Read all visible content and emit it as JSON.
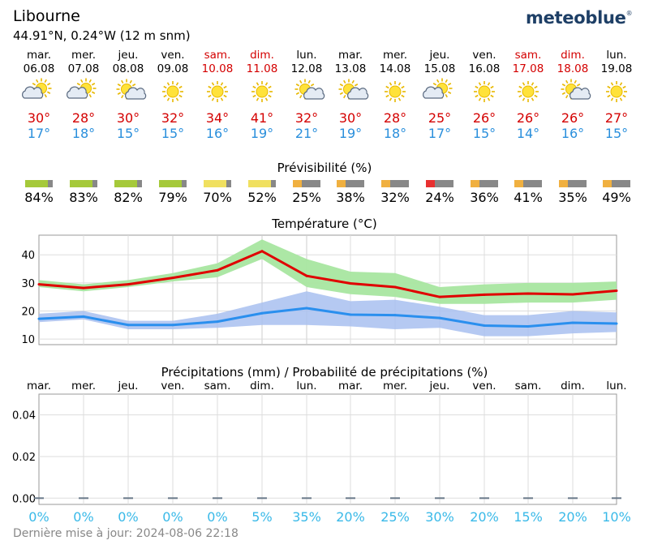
{
  "location": {
    "name": "Libourne",
    "coords": "44.91°N, 0.24°W (12 m snm)"
  },
  "brand": {
    "name": "meteoblue",
    "mark": "®"
  },
  "days": [
    {
      "name": "mar.",
      "date": "06.08",
      "weekend": false,
      "icon": "sun-cloud-left-icon",
      "tmax": "30°",
      "tmin": "17°",
      "predictability": "84%",
      "pred_value": 84,
      "pred_color": "#a5c93a",
      "precip_prob": "0%"
    },
    {
      "name": "mer.",
      "date": "07.08",
      "weekend": false,
      "icon": "sun-cloud-left-icon",
      "tmax": "28°",
      "tmin": "18°",
      "predictability": "83%",
      "pred_value": 83,
      "pred_color": "#a5c93a",
      "precip_prob": "0%"
    },
    {
      "name": "jeu.",
      "date": "08.08",
      "weekend": false,
      "icon": "sun-cloud-right-icon",
      "tmax": "30°",
      "tmin": "15°",
      "predictability": "82%",
      "pred_value": 82,
      "pred_color": "#a5c93a",
      "precip_prob": "0%"
    },
    {
      "name": "ven.",
      "date": "09.08",
      "weekend": false,
      "icon": "sun-icon",
      "tmax": "32°",
      "tmin": "15°",
      "predictability": "79%",
      "pred_value": 79,
      "pred_color": "#a5c93a",
      "precip_prob": "0%"
    },
    {
      "name": "sam.",
      "date": "10.08",
      "weekend": true,
      "icon": "sun-icon",
      "tmax": "34°",
      "tmin": "16°",
      "predictability": "70%",
      "pred_value": 70,
      "pred_color": "#f0e060",
      "precip_prob": "0%"
    },
    {
      "name": "dim.",
      "date": "11.08",
      "weekend": true,
      "icon": "sun-icon",
      "tmax": "41°",
      "tmin": "19°",
      "predictability": "52%",
      "pred_value": 52,
      "pred_color": "#f0e060",
      "precip_prob": "5%"
    },
    {
      "name": "lun.",
      "date": "12.08",
      "weekend": false,
      "icon": "sun-cloud-right-icon",
      "tmax": "32°",
      "tmin": "21°",
      "predictability": "25%",
      "pred_value": 25,
      "pred_color": "#f0b040",
      "precip_prob": "35%"
    },
    {
      "name": "mar.",
      "date": "13.08",
      "weekend": false,
      "icon": "sun-cloud-right-icon",
      "tmax": "30°",
      "tmin": "19°",
      "predictability": "38%",
      "pred_value": 38,
      "pred_color": "#f0b040",
      "precip_prob": "20%"
    },
    {
      "name": "mer.",
      "date": "14.08",
      "weekend": false,
      "icon": "sun-icon",
      "tmax": "28°",
      "tmin": "18°",
      "predictability": "32%",
      "pred_value": 32,
      "pred_color": "#f0b040",
      "precip_prob": "25%"
    },
    {
      "name": "jeu.",
      "date": "15.08",
      "weekend": false,
      "icon": "sun-cloud-left-icon",
      "tmax": "25°",
      "tmin": "17°",
      "predictability": "24%",
      "pred_value": 24,
      "pred_color": "#e83030",
      "precip_prob": "30%"
    },
    {
      "name": "ven.",
      "date": "16.08",
      "weekend": false,
      "icon": "sun-icon",
      "tmax": "26°",
      "tmin": "15°",
      "predictability": "36%",
      "pred_value": 36,
      "pred_color": "#f0b040",
      "precip_prob": "20%"
    },
    {
      "name": "sam.",
      "date": "17.08",
      "weekend": true,
      "icon": "sun-icon",
      "tmax": "26°",
      "tmin": "14°",
      "predictability": "41%",
      "pred_value": 41,
      "pred_color": "#f0b040",
      "precip_prob": "15%"
    },
    {
      "name": "dim.",
      "date": "18.08",
      "weekend": true,
      "icon": "sun-cloud-right-icon",
      "tmax": "26°",
      "tmin": "16°",
      "predictability": "35%",
      "pred_value": 35,
      "pred_color": "#f0b040",
      "precip_prob": "20%"
    },
    {
      "name": "lun.",
      "date": "19.08",
      "weekend": false,
      "icon": "sun-icon",
      "tmax": "27°",
      "tmin": "15°",
      "predictability": "49%",
      "pred_value": 49,
      "pred_color": "#f0b040",
      "precip_prob": "10%"
    }
  ],
  "sections": {
    "predictability_title": "Prévisibilité (%)",
    "temperature_title": "Température (°C)",
    "precip_title": "Précipitations (mm) / Probabilité de précipitations (%)"
  },
  "colors": {
    "tmax_line": "#e00000",
    "tmin_line": "#2a8fee",
    "tmax_band": "#a8e6a0",
    "tmin_band": "#a8c0f0",
    "weekend": "#d40000",
    "precip_prob": "#39b9e8"
  },
  "chart_data": [
    {
      "type": "line",
      "title": "Température (°C)",
      "x": [
        "06.08",
        "07.08",
        "08.08",
        "09.08",
        "10.08",
        "11.08",
        "12.08",
        "13.08",
        "14.08",
        "15.08",
        "16.08",
        "17.08",
        "18.08",
        "19.08"
      ],
      "ylim": [
        8,
        47
      ],
      "yticks": [
        10,
        20,
        30,
        40
      ],
      "grid": true,
      "series": [
        {
          "values": [
            29.5,
            28.2,
            29.5,
            31.8,
            34.5,
            41.3,
            32.5,
            29.8,
            28.5,
            25.0,
            25.8,
            26.2,
            25.9,
            27.2
          ]
        },
        {
          "values": [
            17.2,
            18.0,
            15.0,
            15.0,
            16.2,
            19.2,
            21.0,
            18.7,
            18.5,
            17.5,
            14.8,
            14.5,
            15.8,
            15.5
          ]
        }
      ],
      "bands": [
        {
          "low": [
            28.5,
            27.0,
            28.5,
            30.5,
            32.0,
            38.5,
            28.5,
            26.0,
            25.0,
            22.5,
            22.5,
            23.0,
            23.0,
            24.0
          ],
          "high": [
            31.0,
            29.5,
            31.0,
            33.5,
            37.0,
            45.5,
            38.5,
            34.0,
            33.5,
            28.5,
            29.5,
            30.0,
            30.0,
            30.5
          ]
        },
        {
          "low": [
            16.0,
            17.0,
            13.5,
            13.5,
            14.0,
            15.0,
            15.0,
            14.5,
            13.5,
            14.0,
            11.0,
            11.0,
            12.0,
            12.5
          ],
          "high": [
            19.0,
            20.0,
            16.5,
            16.5,
            19.0,
            23.0,
            27.0,
            23.5,
            24.0,
            21.5,
            18.5,
            18.5,
            20.0,
            19.5
          ]
        }
      ]
    },
    {
      "type": "bar",
      "title": "Précipitations (mm) / Probabilité de précipitations (%)",
      "categories": [
        "mar.",
        "mer.",
        "jeu.",
        "ven.",
        "sam.",
        "dim.",
        "lun.",
        "mar.",
        "mer.",
        "jeu.",
        "ven.",
        "sam.",
        "dim.",
        "lun."
      ],
      "values": [
        0,
        0,
        0,
        0,
        0,
        0,
        0,
        0,
        0,
        0,
        0,
        0,
        0,
        0
      ],
      "probability": [
        0,
        0,
        0,
        0,
        0,
        5,
        35,
        20,
        25,
        30,
        20,
        15,
        20,
        10
      ],
      "ylim": [
        -0.003,
        0.05
      ],
      "yticks": [
        0.0,
        0.02,
        0.04
      ],
      "grid": true
    }
  ],
  "footer": {
    "updated": "Dernière mise à jour: 2024-08-06 22:18"
  }
}
